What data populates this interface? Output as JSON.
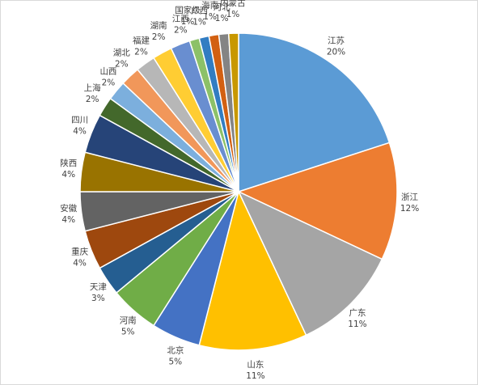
{
  "chart_data": {
    "type": "pie",
    "categories": [
      "江苏",
      "浙江",
      "广东",
      "山东",
      "北京",
      "河南",
      "天津",
      "重庆",
      "安徽",
      "陕西",
      "四川",
      "上海",
      "山西",
      "湖北",
      "福建",
      "湖南",
      "江西",
      "国家级",
      "广西",
      "海南",
      "河北",
      "内蒙古"
    ],
    "values": [
      20,
      12,
      11,
      11,
      5,
      5,
      3,
      4,
      4,
      4,
      4,
      2,
      2,
      2,
      2,
      2,
      2,
      1,
      1,
      1,
      1,
      1
    ],
    "value_labels": [
      "20%",
      "12%",
      "11%",
      "11%",
      "5%",
      "5%",
      "3%",
      "4%",
      "4%",
      "4%",
      "4%",
      "2%",
      "2%",
      "2%",
      "2%",
      "2%",
      "2%",
      "1%",
      "1%",
      "1%",
      "1%",
      "1%"
    ],
    "colors": [
      "#5b9bd5",
      "#ed7d31",
      "#a5a5a5",
      "#ffc000",
      "#4472c4",
      "#70ad47",
      "#255e91",
      "#9e480e",
      "#636363",
      "#997300",
      "#264478",
      "#43682b",
      "#7cafdd",
      "#f1975a",
      "#b7b7b7",
      "#ffcd33",
      "#698ed0",
      "#8cc168",
      "#327dc2",
      "#d26012",
      "#848484",
      "#c89800"
    ]
  }
}
